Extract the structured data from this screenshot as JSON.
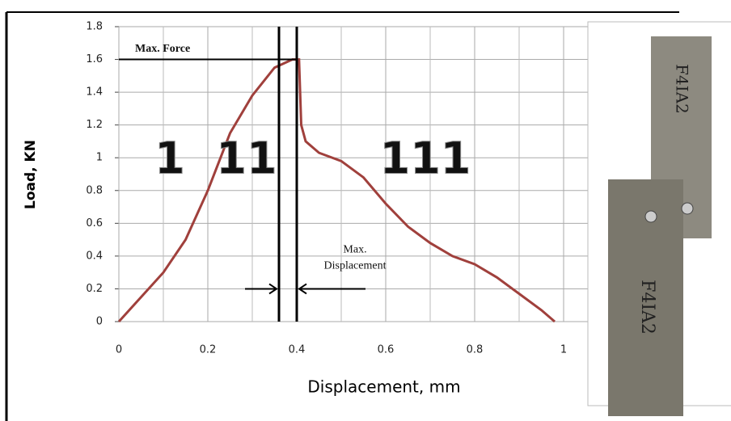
{
  "chart_data": {
    "type": "line",
    "x_label": "Displacement, mm",
    "y_label": "Load, KN",
    "x": [
      0,
      0.05,
      0.1,
      0.15,
      0.2,
      0.25,
      0.3,
      0.35,
      0.39,
      0.405,
      0.41,
      0.42,
      0.45,
      0.5,
      0.55,
      0.6,
      0.65,
      0.7,
      0.75,
      0.8,
      0.85,
      0.9,
      0.95,
      0.98
    ],
    "series": [
      {
        "color": "#a0403c",
        "values": [
          0,
          0.15,
          0.3,
          0.5,
          0.8,
          1.15,
          1.38,
          1.55,
          1.6,
          1.6,
          1.2,
          1.1,
          1.03,
          0.98,
          0.88,
          0.72,
          0.58,
          0.48,
          0.4,
          0.35,
          0.27,
          0.17,
          0.07,
          0
        ]
      }
    ],
    "xlim": [
      0,
      1.2
    ],
    "xticks": [
      0,
      0.2,
      0.4,
      0.6,
      0.8,
      1
    ],
    "ylim": [
      0,
      1.8
    ],
    "yticks": [
      0,
      0.2,
      0.4,
      0.6,
      0.8,
      1,
      1.2,
      1.4,
      1.6,
      1.8
    ],
    "grid": true,
    "max_force": {
      "label": "Max. Force",
      "y": 1.6,
      "x_end": 0.4
    },
    "displacement_lines": [
      0.36,
      0.4
    ],
    "max_displacement_label": [
      "Max.",
      "Displacement"
    ],
    "regions": [
      "1",
      "11",
      "111"
    ],
    "specimen_labels": [
      "F4IA2",
      "F4IA2"
    ]
  }
}
